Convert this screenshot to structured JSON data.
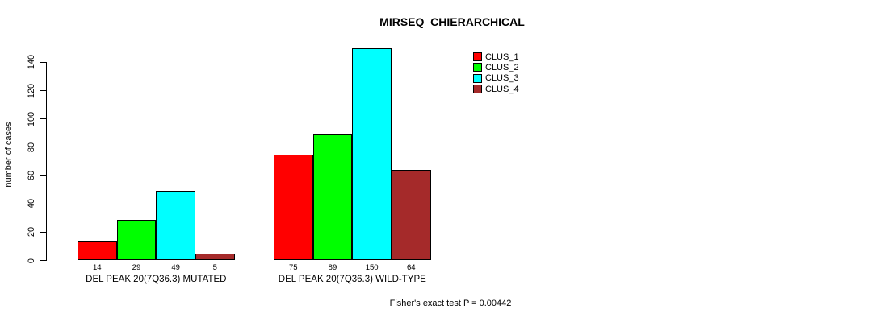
{
  "chart_data": {
    "type": "bar",
    "title": "MIRSEQ_CHIERARCHICAL",
    "xlabel": "",
    "ylabel": "number of cases",
    "ylim": [
      0,
      150
    ],
    "yticks": [
      0,
      20,
      40,
      60,
      80,
      100,
      120,
      140
    ],
    "grid": false,
    "legend_position": "top-right",
    "categories": [
      "DEL PEAK 20(7Q36.3) MUTATED",
      "DEL PEAK 20(7Q36.3) WILD-TYPE"
    ],
    "series": [
      {
        "name": "CLUS_1",
        "color": "#FF0000",
        "values": [
          14,
          75
        ]
      },
      {
        "name": "CLUS_2",
        "color": "#00FF00",
        "values": [
          29,
          89
        ]
      },
      {
        "name": "CLUS_3",
        "color": "#00FFFF",
        "values": [
          49,
          150
        ]
      },
      {
        "name": "CLUS_4",
        "color": "#A52A2A",
        "values": [
          5,
          64
        ]
      }
    ],
    "bar_value_labels": [
      [
        14,
        29,
        49,
        5
      ],
      [
        75,
        89,
        150,
        64
      ]
    ],
    "annotation": "Fisher's exact test P = 0.00442",
    "colors": {
      "axis": "#000000",
      "text": "#000000",
      "background": "#FFFFFF"
    }
  }
}
